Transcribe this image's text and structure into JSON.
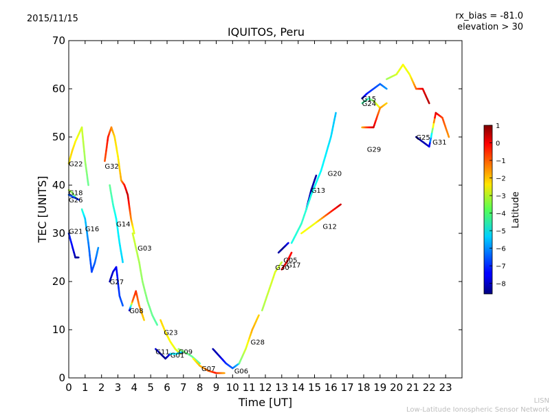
{
  "header": {
    "date": "2015/11/15",
    "bias_label": "rx_bias = -81.0",
    "elevation_label": "elevation > 30"
  },
  "footer": {
    "line1": "LISN",
    "line2": "Low-Latitude Ionospheric Sensor Network"
  },
  "chart_data": {
    "type": "scatter",
    "title": "IQUITOS, Peru",
    "xlabel": "Time [UT]",
    "ylabel": "TEC [UNITS]",
    "xlim": [
      0,
      24
    ],
    "ylim": [
      0,
      70
    ],
    "xticks": [
      0,
      1,
      2,
      3,
      4,
      5,
      6,
      7,
      8,
      9,
      10,
      11,
      12,
      13,
      14,
      15,
      16,
      17,
      18,
      19,
      20,
      21,
      22,
      23
    ],
    "yticks": [
      0,
      10,
      20,
      30,
      40,
      50,
      60,
      70
    ],
    "grid": false,
    "colorbar": {
      "label": "Latitude",
      "min": -8.6,
      "max": 1.0,
      "ticks": [
        1,
        0,
        -1,
        -2,
        -3,
        -4,
        -5,
        -6,
        -7,
        -8
      ],
      "colormap": "jet"
    },
    "series": [
      {
        "name": "G22",
        "label_at": [
          0.0,
          44.5
        ],
        "points": [
          [
            0.0,
            44.5,
            -2.5
          ],
          [
            0.2,
            47,
            -2.2
          ],
          [
            0.4,
            49,
            -2.5
          ],
          [
            0.6,
            50.5,
            -2.8
          ],
          [
            0.8,
            52,
            -3
          ],
          [
            1.0,
            45,
            -3.5
          ],
          [
            1.2,
            40,
            -4
          ]
        ]
      },
      {
        "name": "G18",
        "label_at": [
          0.0,
          38.5
        ],
        "points": [
          [
            0.0,
            39,
            -3.2
          ],
          [
            0.2,
            38.5,
            -3.5
          ],
          [
            0.4,
            37.5,
            -4
          ]
        ]
      },
      {
        "name": "G26",
        "label_at": [
          0.0,
          37.0
        ],
        "points": [
          [
            0.0,
            38,
            -6.5
          ],
          [
            0.3,
            37.5,
            -6.8
          ],
          [
            0.6,
            37,
            -7
          ]
        ]
      },
      {
        "name": "G21",
        "label_at": [
          0.0,
          30.5
        ],
        "points": [
          [
            0.0,
            30,
            -7
          ],
          [
            0.2,
            27.5,
            -7.3
          ],
          [
            0.4,
            25,
            -8.2
          ],
          [
            0.6,
            25,
            -8.4
          ]
        ]
      },
      {
        "name": "G16",
        "label_at": [
          1.0,
          31.0
        ],
        "points": [
          [
            0.8,
            35,
            -4.5
          ],
          [
            1.0,
            33,
            -5.5
          ],
          [
            1.2,
            28,
            -6.2
          ],
          [
            1.4,
            22,
            -6.8
          ],
          [
            1.6,
            24,
            -6.5
          ],
          [
            1.8,
            27,
            -6
          ]
        ]
      },
      {
        "name": "G32",
        "label_at": [
          2.2,
          44.0
        ],
        "points": [
          [
            2.2,
            45,
            -1
          ],
          [
            2.4,
            50,
            -0.3
          ],
          [
            2.6,
            52,
            -1.4
          ],
          [
            2.8,
            50,
            -2.2
          ],
          [
            3.0,
            46,
            -2.5
          ],
          [
            3.2,
            41,
            -1.8
          ],
          [
            3.4,
            40,
            -0.4
          ],
          [
            3.6,
            38,
            0.4
          ],
          [
            3.8,
            33,
            -1.5
          ],
          [
            4.0,
            30,
            -3
          ]
        ]
      },
      {
        "name": "G14",
        "label_at": [
          2.9,
          32.0
        ],
        "points": [
          [
            2.5,
            40,
            -4
          ],
          [
            2.7,
            36,
            -4.5
          ],
          [
            2.9,
            33,
            -5
          ],
          [
            3.1,
            28,
            -5.2
          ],
          [
            3.3,
            24,
            -5.4
          ]
        ]
      },
      {
        "name": "G03",
        "label_at": [
          4.2,
          27.0
        ],
        "points": [
          [
            3.9,
            30,
            -3
          ],
          [
            4.1,
            27,
            -3.2
          ],
          [
            4.3,
            24,
            -3.4
          ],
          [
            4.5,
            20,
            -3.6
          ],
          [
            4.8,
            16,
            -3.8
          ],
          [
            5.1,
            13,
            -4
          ],
          [
            5.4,
            11,
            -4.2
          ]
        ]
      },
      {
        "name": "G27",
        "label_at": [
          2.5,
          20.0
        ],
        "points": [
          [
            2.5,
            20,
            -8.2
          ],
          [
            2.7,
            22,
            -7.8
          ],
          [
            2.9,
            23,
            -7.5
          ],
          [
            3.1,
            17,
            -6.8
          ],
          [
            3.3,
            15,
            -6.5
          ]
        ]
      },
      {
        "name": "G08",
        "label_at": [
          3.7,
          14.0
        ],
        "points": [
          [
            3.7,
            14,
            -8.3
          ],
          [
            3.9,
            16,
            -1.2
          ],
          [
            4.1,
            18,
            -0.6
          ],
          [
            4.3,
            15,
            -1.5
          ],
          [
            4.6,
            12,
            -2.2
          ]
        ]
      },
      {
        "name": "G23",
        "label_at": [
          5.8,
          9.5
        ],
        "points": [
          [
            5.6,
            12,
            -2.2
          ],
          [
            5.9,
            9.5,
            -2.4
          ],
          [
            6.2,
            7.5,
            -2.6
          ],
          [
            6.5,
            6,
            -2.8
          ],
          [
            6.8,
            5,
            -3
          ]
        ]
      },
      {
        "name": "G11",
        "label_at": [
          5.3,
          5.5
        ],
        "points": [
          [
            5.3,
            6,
            -7.8
          ],
          [
            5.6,
            5,
            -8.3
          ],
          [
            5.9,
            4,
            -8.5
          ],
          [
            6.2,
            5,
            -7.5
          ]
        ]
      },
      {
        "name": "G01",
        "label_at": [
          6.2,
          4.8
        ],
        "points": [
          [
            6.2,
            5,
            -5
          ],
          [
            6.6,
            5,
            -5.2
          ],
          [
            7.0,
            5.5,
            -5.4
          ]
        ]
      },
      {
        "name": "G09",
        "label_at": [
          6.7,
          5.5
        ],
        "points": [
          [
            6.7,
            6,
            -3.5
          ],
          [
            7.0,
            5.5,
            -3.8
          ],
          [
            7.5,
            4.5,
            -4
          ],
          [
            8.0,
            3,
            -4.2
          ]
        ]
      },
      {
        "name": "G07",
        "label_at": [
          8.1,
          2.0
        ],
        "points": [
          [
            7.6,
            4,
            -2.6
          ],
          [
            8.0,
            2.5,
            -2
          ],
          [
            8.5,
            1.5,
            -1.2
          ],
          [
            9.0,
            1,
            -0.4
          ],
          [
            9.5,
            1,
            -1.8
          ]
        ]
      },
      {
        "name": "G06",
        "label_at": [
          10.1,
          1.5
        ],
        "points": [
          [
            8.8,
            6,
            -8.2
          ],
          [
            9.2,
            4.5,
            -8
          ],
          [
            9.6,
            3,
            -7
          ],
          [
            10.0,
            2,
            -6.5
          ],
          [
            10.4,
            3,
            -5.5
          ]
        ]
      },
      {
        "name": "G28",
        "label_at": [
          11.1,
          7.5
        ],
        "points": [
          [
            10.4,
            3,
            -4
          ],
          [
            10.8,
            6,
            -3
          ],
          [
            11.2,
            10,
            -1.8
          ],
          [
            11.6,
            13,
            -2.2
          ]
        ]
      },
      {
        "name": "G30",
        "label_at": [
          12.6,
          23.0
        ],
        "points": [
          [
            11.8,
            14,
            -3.4
          ],
          [
            12.2,
            18,
            -3.1
          ],
          [
            12.6,
            22,
            -2.9
          ],
          [
            13.0,
            24,
            -3.2
          ]
        ]
      },
      {
        "name": "G05",
        "label_at": [
          13.1,
          24.5
        ],
        "points": [
          [
            12.8,
            26,
            -8.2
          ],
          [
            13.1,
            27,
            -8.5
          ],
          [
            13.4,
            28,
            -7.5
          ]
        ]
      },
      {
        "name": "G17",
        "label_at": [
          13.3,
          23.5
        ],
        "points": [
          [
            13.0,
            22.5,
            0.4
          ],
          [
            13.3,
            24,
            0.1
          ],
          [
            13.6,
            26,
            -0.3
          ]
        ]
      },
      {
        "name": "G13",
        "label_at": [
          14.8,
          39.0
        ],
        "points": [
          [
            14.5,
            35,
            -7.8
          ],
          [
            14.8,
            39,
            -8.2
          ],
          [
            15.1,
            42,
            -8.3
          ]
        ]
      },
      {
        "name": "G20",
        "label_at": [
          15.8,
          42.5
        ],
        "points": [
          [
            13.6,
            28,
            -4.8
          ],
          [
            14.2,
            32,
            -4.5
          ],
          [
            14.8,
            38,
            -4.8
          ],
          [
            15.4,
            43,
            -5
          ],
          [
            16.0,
            50,
            -5.3
          ],
          [
            16.3,
            55,
            -5.6
          ]
        ]
      },
      {
        "name": "G12",
        "label_at": [
          15.5,
          31.5
        ],
        "points": [
          [
            14.2,
            30,
            -2.6
          ],
          [
            15.0,
            32,
            -2.8
          ],
          [
            15.8,
            34,
            -0.9
          ],
          [
            16.6,
            36,
            0.3
          ]
        ]
      },
      {
        "name": "G15",
        "label_at": [
          17.9,
          58.0
        ],
        "points": [
          [
            17.9,
            58,
            -8.4
          ],
          [
            18.2,
            59,
            -7.2
          ],
          [
            18.6,
            60,
            -6.8
          ],
          [
            19.0,
            61,
            -6.5
          ],
          [
            19.4,
            60,
            -6
          ]
        ]
      },
      {
        "name": "G24",
        "label_at": [
          17.9,
          57.0
        ],
        "points": [
          [
            17.9,
            57,
            -4.2
          ],
          [
            18.3,
            58,
            -4.5
          ],
          [
            18.6,
            57.5,
            -3.5
          ],
          [
            19.0,
            56,
            -2.4
          ]
        ]
      },
      {
        "name": "G29",
        "label_at": [
          18.2,
          47.5
        ],
        "points": [
          [
            17.9,
            52,
            -2
          ],
          [
            18.2,
            52,
            -0.8
          ],
          [
            18.6,
            52,
            0.3
          ],
          [
            19.0,
            56,
            -1.5
          ],
          [
            19.4,
            57,
            -2.2
          ]
        ]
      },
      {
        "name": "G25",
        "label_at": [
          21.2,
          50.0
        ],
        "points": [
          [
            19.4,
            62,
            -3.5
          ],
          [
            20.0,
            63,
            -3
          ],
          [
            20.4,
            65,
            -2.6
          ],
          [
            20.8,
            63,
            -2.8
          ],
          [
            21.2,
            60,
            -1.2
          ],
          [
            21.6,
            60,
            0
          ],
          [
            22.0,
            57,
            0.5
          ]
        ]
      },
      {
        "name": "G31",
        "label_at": [
          22.2,
          49.0
        ],
        "points": [
          [
            21.2,
            50,
            -8.5
          ],
          [
            21.6,
            49,
            -8.2
          ],
          [
            22.0,
            48,
            -8
          ],
          [
            22.4,
            55,
            0.3
          ],
          [
            22.8,
            54,
            -0.8
          ],
          [
            23.2,
            50,
            -1.6
          ]
        ]
      }
    ]
  }
}
